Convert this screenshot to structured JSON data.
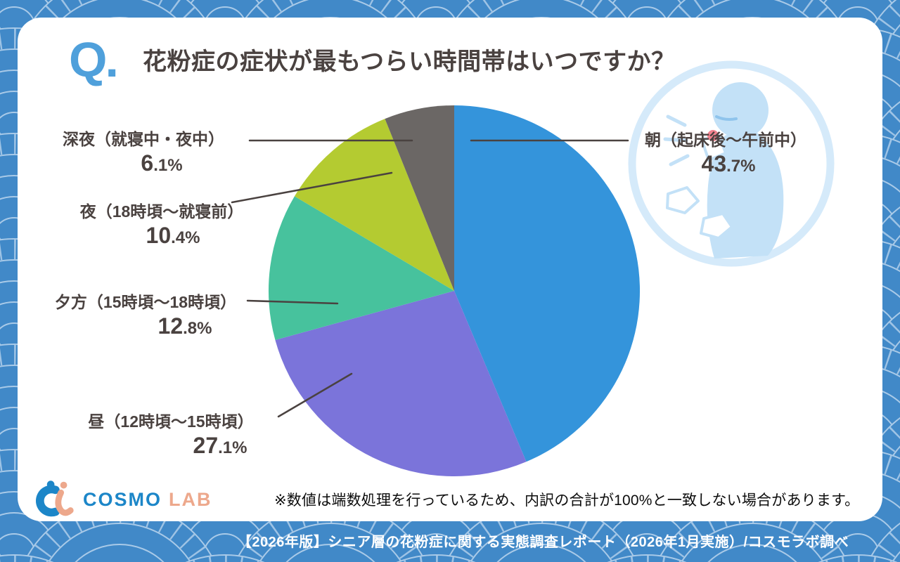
{
  "header": {
    "q_label": "Q.",
    "title": "花粉症の症状が最もつらい時間帯はいつですか？"
  },
  "chart_data": {
    "type": "pie",
    "title": "花粉症の症状が最もつらい時間帯はいつですか？",
    "unit": "%",
    "start_angle": "top",
    "direction": "clockwise",
    "segments": [
      {
        "label": "朝（起床後～午前中）",
        "value": 43.7,
        "color": "#3494DB"
      },
      {
        "label": "昼（12時頃～15時頃）",
        "value": 27.1,
        "color": "#7B74DA"
      },
      {
        "label": "夕方（15時頃～18時頃）",
        "value": 12.8,
        "color": "#47C29D"
      },
      {
        "label": "夜（18時頃～就寝前）",
        "value": 10.4,
        "color": "#B4CB31"
      },
      {
        "label": "深夜（就寝中・夜中）",
        "value": 6.1,
        "color": "#6B6765"
      }
    ]
  },
  "note": "※数値は端数処理を行っているため、内訳の合計が100%と一致しない場合があります。",
  "footer": "【2026年版】シニア層の花粉症に関する実態調査レポート（2026年1月実施）/コスモラボ調べ",
  "logo": {
    "name_primary": "COSMO",
    "name_secondary": "LAB"
  },
  "colors": {
    "accent_blue": "#4FA0DB",
    "pattern_blue": "#4189C8",
    "pattern_line": "#A9CAE8",
    "text": "#4A4240",
    "watermark_blue": "#C3E1F7",
    "nose_pink": "#F2838F"
  }
}
